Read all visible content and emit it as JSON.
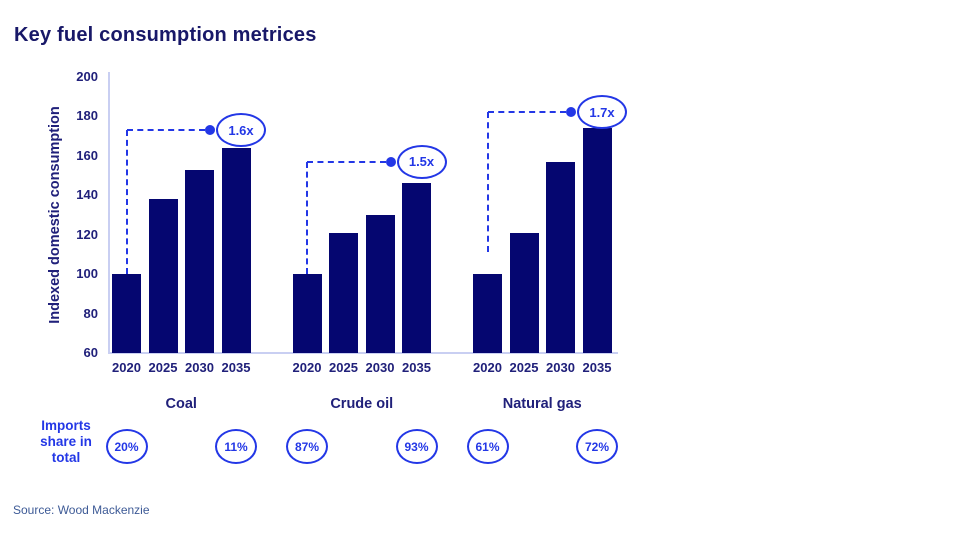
{
  "title": "Key fuel consumption metrices",
  "source": "Source: Wood Mackenzie",
  "imports_row_label": "Imports\nshare in\ntotal",
  "colors": {
    "bar": "#050670",
    "navy_text": "#20207a",
    "title_text": "#181868",
    "accent_blue": "#2337e6",
    "axis_line": "#c9cff2",
    "source_text": "#3d5a96"
  },
  "chart_data": {
    "type": "bar",
    "title": "Key fuel consumption metrices",
    "xlabel": "",
    "ylabel": "Indexed domestic consumption",
    "ylim": [
      60,
      200
    ],
    "yticks": [
      200,
      180,
      160,
      140,
      120,
      100,
      80,
      60
    ],
    "grid": false,
    "legend": false,
    "categories": [
      "2020",
      "2025",
      "2030",
      "2035"
    ],
    "groups": [
      {
        "name": "Coal",
        "values": [
          100,
          138,
          153,
          164
        ],
        "multiplier": "1.6x",
        "guide_level": 173,
        "guide_drop_to": 100,
        "imports": [
          "20%",
          "11%"
        ]
      },
      {
        "name": "Crude oil",
        "values": [
          100,
          121,
          130,
          146
        ],
        "multiplier": "1.5x",
        "guide_level": 157,
        "guide_drop_to": 100,
        "imports": [
          "87%",
          "93%"
        ]
      },
      {
        "name": "Natural gas",
        "values": [
          100,
          121,
          157,
          174
        ],
        "multiplier": "1.7x",
        "guide_level": 182,
        "guide_drop_to": 111,
        "imports": [
          "61%",
          "72%"
        ]
      }
    ]
  }
}
